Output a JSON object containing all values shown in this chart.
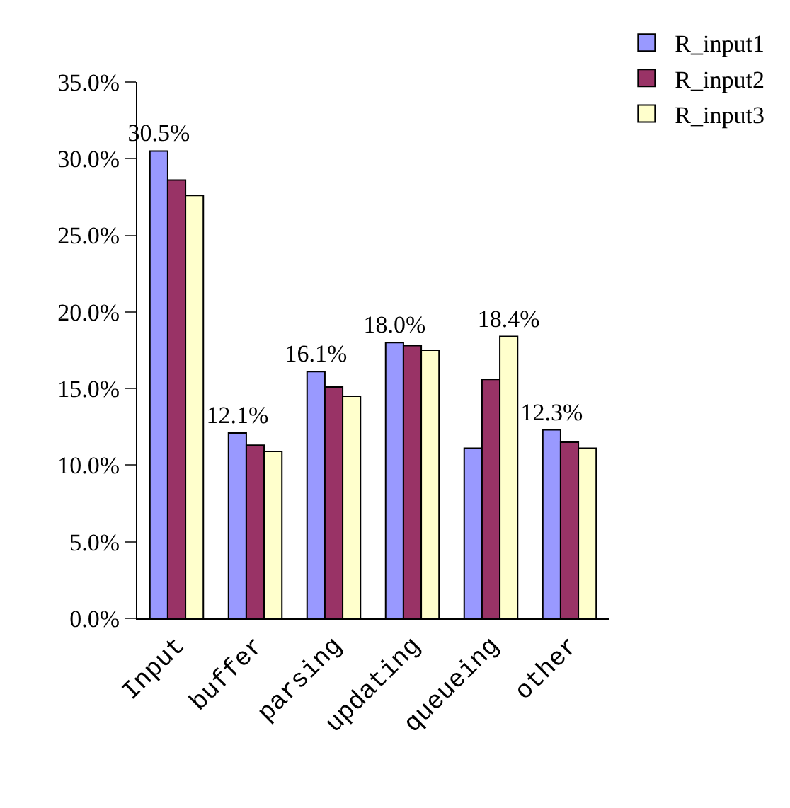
{
  "chart_data": {
    "type": "bar",
    "categories": [
      "Input",
      "buffer",
      "parsing",
      "updating",
      "queueing",
      "other"
    ],
    "series": [
      {
        "name": "R_input1",
        "color": "#9999ff",
        "values": [
          30.5,
          12.1,
          16.1,
          18.0,
          11.1,
          12.3
        ],
        "value_labels": [
          "30.5%",
          "12.1%",
          "16.1%",
          "18.0%",
          null,
          "12.3%"
        ]
      },
      {
        "name": "R_input2",
        "color": "#993366",
        "values": [
          28.6,
          11.3,
          15.1,
          17.8,
          15.6,
          11.5
        ],
        "value_labels": [
          null,
          null,
          null,
          null,
          null,
          null
        ]
      },
      {
        "name": "R_input3",
        "color": "#ffffcc",
        "values": [
          27.6,
          10.9,
          14.5,
          17.5,
          18.4,
          11.1
        ],
        "value_labels": [
          null,
          null,
          null,
          null,
          "18.4%",
          null
        ]
      }
    ],
    "ylim": [
      0,
      35
    ],
    "yticks": [
      {
        "value": 0,
        "label": "0.0%"
      },
      {
        "value": 5,
        "label": "5.0%"
      },
      {
        "value": 10,
        "label": "10.0%"
      },
      {
        "value": 15,
        "label": "15.0%"
      },
      {
        "value": 20,
        "label": "20.0%"
      },
      {
        "value": 25,
        "label": "25.0%"
      },
      {
        "value": 30,
        "label": "30.0%"
      },
      {
        "value": 35,
        "label": "35.0%"
      }
    ],
    "legend": "top right"
  }
}
